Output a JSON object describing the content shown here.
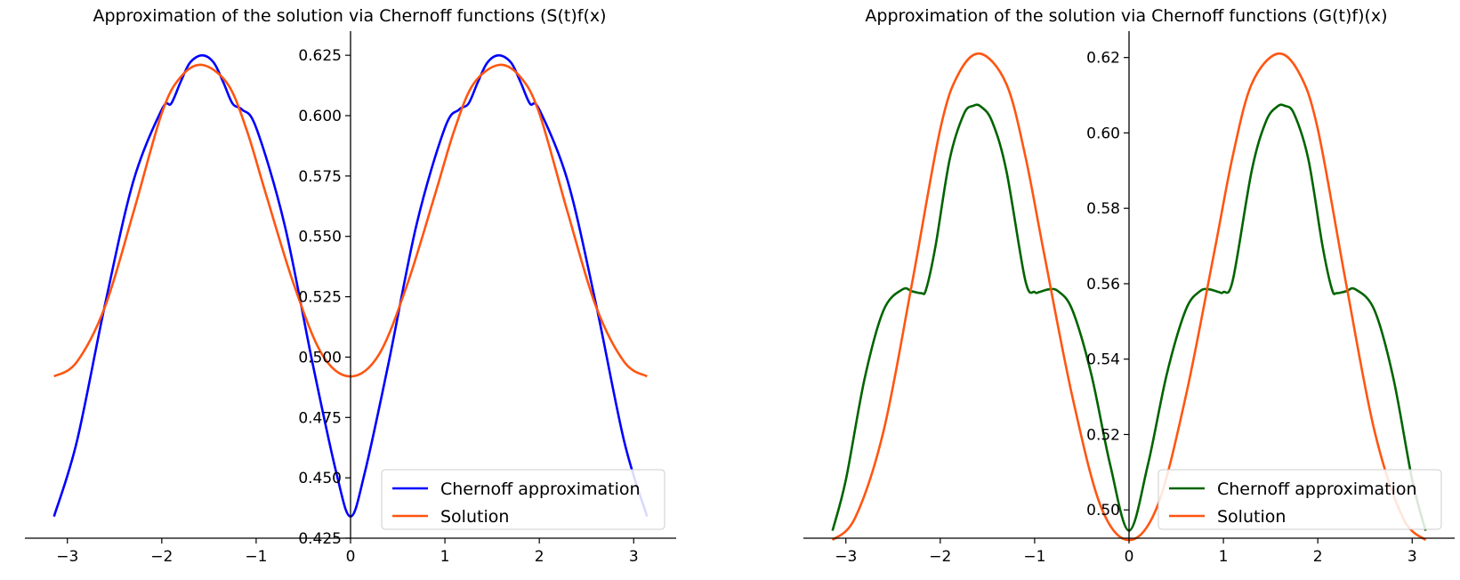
{
  "chart_data": [
    {
      "type": "line",
      "title": "Approximation of the solution via Chernoff functions (S(t)f(x)",
      "xlabel": "",
      "ylabel": "",
      "xlim": [
        -3.45,
        3.45
      ],
      "ylim": [
        0.425,
        0.635
      ],
      "grid": false,
      "spines": "centered at origin (left and bottom only)",
      "xticks": [
        -3,
        -2,
        -1,
        0,
        1,
        2,
        3
      ],
      "xtick_labels": [
        "−3",
        "−2",
        "−1",
        "0",
        "1",
        "2",
        "3"
      ],
      "yticks": [
        0.425,
        0.45,
        0.475,
        0.5,
        0.525,
        0.55,
        0.575,
        0.6,
        0.625
      ],
      "ytick_labels": [
        "0.425",
        "0.450",
        "0.475",
        "0.500",
        "0.525",
        "0.550",
        "0.575",
        "0.600",
        "0.625"
      ],
      "legend_position": "lower-right",
      "series": [
        {
          "name": "Chernoff approximation",
          "color": "#0000ff",
          "x": [
            -3.14159,
            -2.9,
            -2.6,
            -2.3,
            -2.0,
            -1.9,
            -1.8,
            -1.7,
            -1.5708,
            -1.45,
            -1.35,
            -1.25,
            -1.15,
            -1.0,
            -0.7,
            -0.4,
            -0.15,
            0.0,
            0.15,
            0.4,
            0.7,
            1.0,
            1.15,
            1.25,
            1.35,
            1.45,
            1.5708,
            1.7,
            1.8,
            1.9,
            2.0,
            2.3,
            2.6,
            2.9,
            3.14159
          ],
          "y": [
            0.434,
            0.465,
            0.522,
            0.573,
            0.6025,
            0.605,
            0.614,
            0.622,
            0.625,
            0.622,
            0.614,
            0.605,
            0.6025,
            0.595,
            0.555,
            0.497,
            0.452,
            0.434,
            0.452,
            0.497,
            0.555,
            0.595,
            0.6025,
            0.605,
            0.614,
            0.622,
            0.625,
            0.622,
            0.614,
            0.605,
            0.6025,
            0.573,
            0.522,
            0.465,
            0.434
          ]
        },
        {
          "name": "Solution",
          "color": "#ff5511",
          "x": [
            -3.14159,
            -2.9,
            -2.6,
            -2.3,
            -2.0,
            -1.8,
            -1.5708,
            -1.3,
            -1.1,
            -0.9,
            -0.6,
            -0.3,
            0.0,
            0.3,
            0.6,
            0.9,
            1.1,
            1.3,
            1.5708,
            1.8,
            2.0,
            2.3,
            2.6,
            2.9,
            3.14159
          ],
          "y": [
            0.492,
            0.498,
            0.521,
            0.56,
            0.601,
            0.616,
            0.621,
            0.613,
            0.594,
            0.568,
            0.53,
            0.501,
            0.492,
            0.501,
            0.53,
            0.568,
            0.594,
            0.613,
            0.621,
            0.616,
            0.601,
            0.56,
            0.521,
            0.498,
            0.492
          ]
        }
      ]
    },
    {
      "type": "line",
      "title": "Approximation of the solution via Chernoff functions (G(t)f)(x)",
      "xlabel": "",
      "ylabel": "",
      "xlim": [
        -3.45,
        3.45
      ],
      "ylim": [
        0.4925,
        0.627
      ],
      "grid": false,
      "spines": "centered at origin (left and bottom only)",
      "xticks": [
        -3,
        -2,
        -1,
        0,
        1,
        2,
        3
      ],
      "xtick_labels": [
        "−3",
        "−2",
        "−1",
        "0",
        "1",
        "2",
        "3"
      ],
      "yticks": [
        0.5,
        0.52,
        0.54,
        0.56,
        0.58,
        0.6,
        0.62
      ],
      "ytick_labels": [
        "0.50",
        "0.52",
        "0.54",
        "0.56",
        "0.58",
        "0.60",
        "0.62"
      ],
      "legend_position": "lower-right",
      "series": [
        {
          "name": "Chernoff approximation",
          "color": "#006400",
          "x": [
            -3.14159,
            -3.0,
            -2.8,
            -2.6,
            -2.4,
            -2.3,
            -2.2,
            -2.15,
            -2.05,
            -1.9,
            -1.75,
            -1.65,
            -1.5708,
            -1.45,
            -1.3,
            -1.1,
            -1.0,
            -0.95,
            -0.85,
            -0.75,
            -0.6,
            -0.4,
            -0.2,
            0.0,
            0.2,
            0.4,
            0.6,
            0.75,
            0.85,
            0.95,
            1.0,
            1.1,
            1.3,
            1.45,
            1.5708,
            1.65,
            1.75,
            1.9,
            2.05,
            2.15,
            2.2,
            2.3,
            2.4,
            2.6,
            2.8,
            3.0,
            3.14159
          ],
          "y": [
            0.4945,
            0.508,
            0.535,
            0.553,
            0.5585,
            0.558,
            0.5575,
            0.5585,
            0.57,
            0.593,
            0.605,
            0.6072,
            0.607,
            0.603,
            0.59,
            0.561,
            0.5578,
            0.5578,
            0.5585,
            0.558,
            0.553,
            0.536,
            0.512,
            0.4945,
            0.512,
            0.536,
            0.553,
            0.558,
            0.5585,
            0.5578,
            0.5578,
            0.561,
            0.59,
            0.603,
            0.607,
            0.6072,
            0.605,
            0.593,
            0.57,
            0.5585,
            0.5575,
            0.558,
            0.5585,
            0.553,
            0.535,
            0.508,
            0.4945
          ]
        },
        {
          "name": "Solution",
          "color": "#ff5511",
          "x": [
            -3.14159,
            -2.9,
            -2.6,
            -2.3,
            -2.0,
            -1.8,
            -1.5708,
            -1.3,
            -1.1,
            -0.9,
            -0.6,
            -0.3,
            0.0,
            0.3,
            0.6,
            0.9,
            1.1,
            1.3,
            1.5708,
            1.8,
            2.0,
            2.3,
            2.6,
            2.9,
            3.14159
          ],
          "y": [
            0.492,
            0.498,
            0.521,
            0.56,
            0.601,
            0.616,
            0.621,
            0.613,
            0.594,
            0.568,
            0.53,
            0.501,
            0.492,
            0.501,
            0.53,
            0.568,
            0.594,
            0.613,
            0.621,
            0.616,
            0.601,
            0.56,
            0.521,
            0.498,
            0.492
          ]
        }
      ]
    }
  ]
}
